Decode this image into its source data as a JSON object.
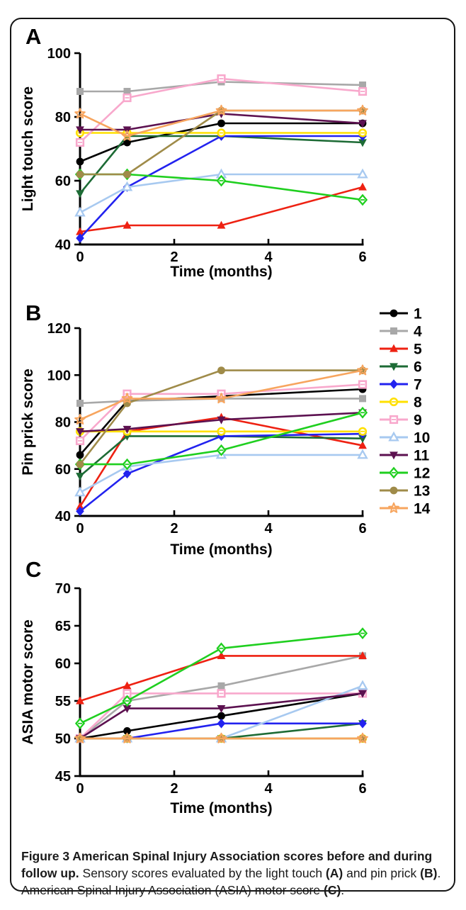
{
  "figure": {
    "caption": [
      {
        "text": "Figure 3 American Spinal Injury Association scores before and during follow up.",
        "bold": true
      },
      {
        "text": " Sensory scores evaluated by the light touch ",
        "bold": false
      },
      {
        "text": "(A)",
        "bold": true
      },
      {
        "text": " and pin prick ",
        "bold": false
      },
      {
        "text": "(B)",
        "bold": true
      },
      {
        "text": ". American Spinal Injury Association (ASIA) motor score ",
        "bold": false
      },
      {
        "text": "(C)",
        "bold": true
      },
      {
        "text": ".",
        "bold": false
      }
    ]
  },
  "legend": {
    "position": "right-of-panel-B",
    "entries": [
      {
        "label": "1",
        "color": "#000000",
        "marker": "circle"
      },
      {
        "label": "4",
        "color": "#a8a8a8",
        "marker": "square"
      },
      {
        "label": "5",
        "color": "#ee2112",
        "marker": "triangle-up"
      },
      {
        "label": "6",
        "color": "#1d6b35",
        "marker": "triangle-down"
      },
      {
        "label": "7",
        "color": "#2222ef",
        "marker": "diamond"
      },
      {
        "label": "8",
        "color": "#ffe000",
        "marker": "circle-open"
      },
      {
        "label": "9",
        "color": "#f8a8cc",
        "marker": "square-open"
      },
      {
        "label": "10",
        "color": "#a7c9f0",
        "marker": "triangle-open"
      },
      {
        "label": "11",
        "color": "#5c1150",
        "marker": "triangle-down"
      },
      {
        "label": "12",
        "color": "#1fcf1f",
        "marker": "diamond-open"
      },
      {
        "label": "13",
        "color": "#9f8b49",
        "marker": "circle"
      },
      {
        "label": "14",
        "color": "#f7a55e",
        "marker": "star-open"
      }
    ]
  },
  "chart_data": [
    {
      "type": "line",
      "panel": "A",
      "ylabel": "Light touch score",
      "xlabel": "Time (months)",
      "x": [
        0,
        1,
        3,
        6
      ],
      "xlim": [
        0,
        6
      ],
      "ylim": [
        40,
        100
      ],
      "xticks": [
        0,
        2,
        4,
        6
      ],
      "yticks": [
        40,
        60,
        80,
        100
      ],
      "series": [
        {
          "name": "1",
          "values": [
            66,
            72,
            78,
            78
          ]
        },
        {
          "name": "4",
          "values": [
            88,
            88,
            91,
            90
          ]
        },
        {
          "name": "5",
          "values": [
            44,
            46,
            46,
            58
          ]
        },
        {
          "name": "6",
          "values": [
            56,
            74,
            74,
            72
          ]
        },
        {
          "name": "7",
          "values": [
            42,
            58,
            74,
            74
          ]
        },
        {
          "name": "8",
          "values": [
            75,
            75,
            75,
            75
          ]
        },
        {
          "name": "9",
          "values": [
            72,
            86,
            92,
            88
          ]
        },
        {
          "name": "10",
          "values": [
            50,
            58,
            62,
            62
          ]
        },
        {
          "name": "11",
          "values": [
            76,
            76,
            81,
            78
          ]
        },
        {
          "name": "12",
          "values": [
            62,
            62,
            60,
            54
          ]
        },
        {
          "name": "13",
          "values": [
            62,
            62,
            82,
            82
          ]
        },
        {
          "name": "14",
          "values": [
            81,
            74,
            82,
            82
          ]
        }
      ]
    },
    {
      "type": "line",
      "panel": "B",
      "ylabel": "Pin prick score",
      "xlabel": "Time (months)",
      "x": [
        0,
        1,
        3,
        6
      ],
      "xlim": [
        0,
        6
      ],
      "ylim": [
        40,
        120
      ],
      "xticks": [
        0,
        2,
        4,
        6
      ],
      "yticks": [
        40,
        60,
        80,
        100,
        120
      ],
      "series": [
        {
          "name": "1",
          "values": [
            66,
            89,
            91,
            94
          ]
        },
        {
          "name": "4",
          "values": [
            88,
            89,
            90,
            90
          ]
        },
        {
          "name": "5",
          "values": [
            44,
            76,
            82,
            70
          ]
        },
        {
          "name": "6",
          "values": [
            57,
            74,
            74,
            73
          ]
        },
        {
          "name": "7",
          "values": [
            42,
            58,
            74,
            75
          ]
        },
        {
          "name": "8",
          "values": [
            76,
            76,
            76,
            76
          ]
        },
        {
          "name": "9",
          "values": [
            72,
            92,
            92,
            96
          ]
        },
        {
          "name": "10",
          "values": [
            50,
            61,
            66,
            66
          ]
        },
        {
          "name": "11",
          "values": [
            76,
            77,
            81,
            84
          ]
        },
        {
          "name": "12",
          "values": [
            62,
            62,
            68,
            84
          ]
        },
        {
          "name": "13",
          "values": [
            62,
            88,
            102,
            102
          ]
        },
        {
          "name": "14",
          "values": [
            81,
            90,
            90,
            102
          ]
        }
      ]
    },
    {
      "type": "line",
      "panel": "C",
      "ylabel": "ASIA motor score",
      "xlabel": "Time (months)",
      "x": [
        0,
        1,
        3,
        6
      ],
      "xlim": [
        0,
        6
      ],
      "ylim": [
        45,
        70
      ],
      "xticks": [
        0,
        2,
        4,
        6
      ],
      "yticks": [
        45,
        50,
        55,
        60,
        65,
        70
      ],
      "series": [
        {
          "name": "1",
          "values": [
            50,
            51,
            53,
            56
          ]
        },
        {
          "name": "4",
          "values": [
            50,
            55,
            57,
            61
          ]
        },
        {
          "name": "5",
          "values": [
            55,
            57,
            61,
            61
          ]
        },
        {
          "name": "6",
          "values": [
            50,
            50,
            50,
            52
          ]
        },
        {
          "name": "7",
          "values": [
            50,
            50,
            52,
            52
          ]
        },
        {
          "name": "8",
          "values": [
            50,
            50,
            50,
            50
          ]
        },
        {
          "name": "9",
          "values": [
            50,
            56,
            56,
            56
          ]
        },
        {
          "name": "10",
          "values": [
            50,
            50,
            50,
            57
          ]
        },
        {
          "name": "11",
          "values": [
            50,
            54,
            54,
            56
          ]
        },
        {
          "name": "12",
          "values": [
            52,
            55,
            62,
            64
          ]
        },
        {
          "name": "13",
          "values": [
            50,
            50,
            50,
            50
          ]
        },
        {
          "name": "14",
          "values": [
            50,
            50,
            50,
            50
          ]
        }
      ]
    }
  ]
}
